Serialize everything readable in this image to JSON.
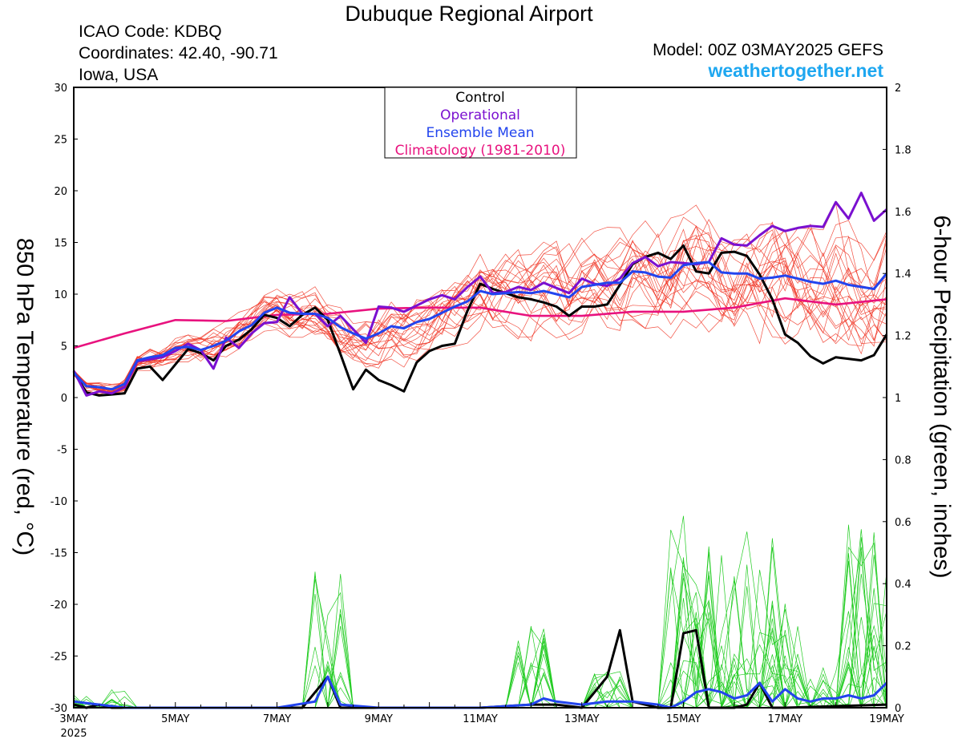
{
  "header": {
    "title": "Dubuque Regional Airport",
    "icao": "ICAO Code: KDBQ",
    "coords": "Coordinates: 42.40, -90.71",
    "location": "Iowa, USA",
    "model": "Model: 00Z 03MAY2025 GEFS",
    "brand": "weathertogether.net"
  },
  "chart_data": {
    "type": "line",
    "xlabel": "",
    "ylabel_left": "850 hPa Temperature (red, °C)",
    "ylabel_right": "6-hour Precipitation (green, inches)",
    "x_range_days": [
      3,
      19
    ],
    "x_ticks": [
      {
        "day": 3,
        "label": "3MAY",
        "sub": "2025"
      },
      {
        "day": 5,
        "label": "5MAY"
      },
      {
        "day": 7,
        "label": "7MAY"
      },
      {
        "day": 9,
        "label": "9MAY"
      },
      {
        "day": 11,
        "label": "11MAY"
      },
      {
        "day": 13,
        "label": "13MAY"
      },
      {
        "day": 15,
        "label": "15MAY"
      },
      {
        "day": 17,
        "label": "17MAY"
      },
      {
        "day": 19,
        "label": "19MAY"
      }
    ],
    "ylim_left": [
      -30,
      30
    ],
    "yticks_left": [
      "30",
      "25",
      "20",
      "15",
      "10",
      "5",
      "0",
      "-5",
      "-10",
      "-15",
      "-20",
      "-25",
      "-30"
    ],
    "ylim_right": [
      0,
      2
    ],
    "yticks_right": [
      "2",
      "1.8",
      "1.6",
      "1.4",
      "1.2",
      "1",
      "0.8",
      "0.6",
      "0.4",
      "0.2",
      "0"
    ],
    "legend": {
      "placement": "top-center",
      "entries": [
        {
          "label": "Control",
          "color": "#000000"
        },
        {
          "label": "Operational",
          "color": "#7a10d0"
        },
        {
          "label": "Ensemble Mean",
          "color": "#2244ee"
        },
        {
          "label": "Climatology (1981-2010)",
          "color": "#e8127e"
        }
      ]
    },
    "colors": {
      "member_temp": "#f03020",
      "member_precip": "#22cc22",
      "control": "#000000",
      "operational": "#7a10d0",
      "mean": "#2244ee",
      "climatology": "#e8127e"
    },
    "series": [
      {
        "name": "Climatology (1981-2010)",
        "axis": "left",
        "points": [
          [
            3,
            4.8
          ],
          [
            4,
            6.2
          ],
          [
            5,
            7.5
          ],
          [
            6,
            7.4
          ],
          [
            7,
            8.0
          ],
          [
            8,
            8.1
          ],
          [
            9,
            8.6
          ],
          [
            10,
            8.7
          ],
          [
            11,
            8.7
          ],
          [
            12,
            7.9
          ],
          [
            13,
            7.9
          ],
          [
            14,
            8.3
          ],
          [
            15,
            8.3
          ],
          [
            16,
            8.7
          ],
          [
            17,
            9.6
          ],
          [
            18,
            9.0
          ],
          [
            19,
            9.5
          ]
        ]
      },
      {
        "name": "Control",
        "axis": "left",
        "points": [
          [
            3,
            2.5
          ],
          [
            3.25,
            0.5
          ],
          [
            3.5,
            0.2
          ],
          [
            3.75,
            0.3
          ],
          [
            4,
            0.4
          ],
          [
            4.25,
            2.8
          ],
          [
            4.5,
            3.0
          ],
          [
            4.75,
            1.7
          ],
          [
            5,
            3.2
          ],
          [
            5.25,
            4.7
          ],
          [
            5.5,
            4.3
          ],
          [
            5.75,
            3.6
          ],
          [
            6,
            5.0
          ],
          [
            6.25,
            5.6
          ],
          [
            6.5,
            6.6
          ],
          [
            6.75,
            8.0
          ],
          [
            7,
            7.7
          ],
          [
            7.25,
            6.9
          ],
          [
            7.5,
            8.0
          ],
          [
            7.75,
            8.7
          ],
          [
            8,
            7.5
          ],
          [
            8.25,
            4.2
          ],
          [
            8.5,
            0.8
          ],
          [
            8.75,
            2.7
          ],
          [
            9,
            1.7
          ],
          [
            9.25,
            1.2
          ],
          [
            9.5,
            0.6
          ],
          [
            9.75,
            3.4
          ],
          [
            10,
            4.5
          ],
          [
            10.25,
            5.0
          ],
          [
            10.5,
            5.2
          ],
          [
            10.75,
            8.4
          ],
          [
            11,
            11.0
          ],
          [
            11.25,
            10.5
          ],
          [
            11.5,
            10.1
          ],
          [
            11.75,
            9.7
          ],
          [
            12,
            9.5
          ],
          [
            12.25,
            9.2
          ],
          [
            12.5,
            8.8
          ],
          [
            12.75,
            7.9
          ],
          [
            13,
            8.8
          ],
          [
            13.25,
            8.8
          ],
          [
            13.5,
            9.0
          ],
          [
            13.75,
            10.9
          ],
          [
            14,
            12.9
          ],
          [
            14.25,
            13.6
          ],
          [
            14.5,
            14.0
          ],
          [
            14.75,
            13.4
          ],
          [
            15,
            14.7
          ],
          [
            15.25,
            12.2
          ],
          [
            15.5,
            12.0
          ],
          [
            15.75,
            14.0
          ],
          [
            16,
            14.1
          ],
          [
            16.25,
            13.7
          ],
          [
            16.5,
            11.9
          ],
          [
            16.75,
            9.5
          ],
          [
            17,
            6.1
          ],
          [
            17.25,
            5.3
          ],
          [
            17.5,
            4.0
          ],
          [
            17.75,
            3.3
          ],
          [
            18,
            3.9
          ],
          [
            18.5,
            3.6
          ],
          [
            18.75,
            4.1
          ],
          [
            19,
            6.1
          ]
        ]
      },
      {
        "name": "Operational",
        "axis": "left",
        "points": [
          [
            3,
            2.6
          ],
          [
            3.25,
            0.2
          ],
          [
            3.5,
            0.6
          ],
          [
            3.75,
            0.4
          ],
          [
            4,
            1.0
          ],
          [
            4.25,
            3.5
          ],
          [
            4.5,
            3.7
          ],
          [
            4.75,
            3.9
          ],
          [
            5,
            4.5
          ],
          [
            5.25,
            5.2
          ],
          [
            5.5,
            4.6
          ],
          [
            5.75,
            2.8
          ],
          [
            6,
            5.8
          ],
          [
            6.25,
            4.8
          ],
          [
            6.5,
            6.2
          ],
          [
            6.75,
            7.2
          ],
          [
            7,
            7.3
          ],
          [
            7.25,
            9.7
          ],
          [
            7.5,
            8.1
          ],
          [
            7.75,
            8.1
          ],
          [
            8,
            6.9
          ],
          [
            8.25,
            7.9
          ],
          [
            8.5,
            6.6
          ],
          [
            8.75,
            5.3
          ],
          [
            9,
            8.8
          ],
          [
            9.25,
            8.7
          ],
          [
            9.5,
            8.3
          ],
          [
            9.75,
            8.9
          ],
          [
            10,
            9.5
          ],
          [
            10.25,
            9.9
          ],
          [
            10.5,
            9.5
          ],
          [
            10.75,
            10.7
          ],
          [
            11,
            11.7
          ],
          [
            11.25,
            10.1
          ],
          [
            11.5,
            10.2
          ],
          [
            11.75,
            10.7
          ],
          [
            12,
            10.4
          ],
          [
            12.25,
            11.1
          ],
          [
            12.5,
            10.6
          ],
          [
            12.75,
            10.1
          ],
          [
            13,
            11.5
          ],
          [
            13.25,
            11.0
          ],
          [
            13.5,
            10.8
          ],
          [
            13.75,
            11.5
          ],
          [
            14,
            13.0
          ],
          [
            14.25,
            13.6
          ],
          [
            14.5,
            12.7
          ],
          [
            14.75,
            13.1
          ],
          [
            15,
            13.0
          ],
          [
            15.25,
            12.9
          ],
          [
            15.5,
            13.1
          ],
          [
            15.75,
            15.4
          ],
          [
            16,
            14.8
          ],
          [
            16.25,
            14.7
          ],
          [
            16.5,
            15.7
          ],
          [
            16.75,
            16.6
          ],
          [
            17,
            16.1
          ],
          [
            17.25,
            16.4
          ],
          [
            17.5,
            16.6
          ],
          [
            17.75,
            16.5
          ],
          [
            18,
            18.9
          ],
          [
            18.25,
            17.3
          ],
          [
            18.5,
            19.8
          ],
          [
            18.75,
            17.1
          ],
          [
            19,
            18.2
          ]
        ]
      },
      {
        "name": "Ensemble Mean",
        "axis": "left",
        "points": [
          [
            3,
            2.4
          ],
          [
            3.25,
            1.1
          ],
          [
            3.5,
            1.0
          ],
          [
            3.75,
            0.8
          ],
          [
            4,
            1.3
          ],
          [
            4.25,
            3.6
          ],
          [
            4.5,
            3.9
          ],
          [
            4.75,
            4.1
          ],
          [
            5,
            4.8
          ],
          [
            5.25,
            4.9
          ],
          [
            5.5,
            4.6
          ],
          [
            5.75,
            5.0
          ],
          [
            6,
            5.5
          ],
          [
            6.25,
            6.4
          ],
          [
            6.5,
            7.0
          ],
          [
            6.75,
            8.2
          ],
          [
            7,
            8.7
          ],
          [
            7.25,
            8.2
          ],
          [
            7.5,
            8.1
          ],
          [
            7.75,
            8.1
          ],
          [
            8,
            7.7
          ],
          [
            8.25,
            6.8
          ],
          [
            8.5,
            6.2
          ],
          [
            8.75,
            5.7
          ],
          [
            9,
            6.2
          ],
          [
            9.25,
            6.9
          ],
          [
            9.5,
            6.7
          ],
          [
            9.75,
            7.3
          ],
          [
            10,
            7.6
          ],
          [
            10.25,
            8.2
          ],
          [
            10.5,
            8.8
          ],
          [
            10.75,
            9.3
          ],
          [
            11,
            10.3
          ],
          [
            11.25,
            10.0
          ],
          [
            11.5,
            10.1
          ],
          [
            11.75,
            10.2
          ],
          [
            12,
            10.1
          ],
          [
            12.25,
            10.3
          ],
          [
            12.5,
            10.0
          ],
          [
            12.75,
            9.7
          ],
          [
            13,
            10.7
          ],
          [
            13.25,
            10.9
          ],
          [
            13.5,
            11.1
          ],
          [
            13.75,
            11.1
          ],
          [
            14,
            12.2
          ],
          [
            14.25,
            12.1
          ],
          [
            14.5,
            11.7
          ],
          [
            14.75,
            11.6
          ],
          [
            15,
            12.8
          ],
          [
            15.25,
            13.0
          ],
          [
            15.5,
            13.1
          ],
          [
            15.75,
            12.1
          ],
          [
            16,
            12.0
          ],
          [
            16.25,
            12.0
          ],
          [
            16.5,
            11.5
          ],
          [
            16.75,
            11.6
          ],
          [
            17,
            11.8
          ],
          [
            17.25,
            11.5
          ],
          [
            17.5,
            11.2
          ],
          [
            17.75,
            11.0
          ],
          [
            18,
            11.3
          ],
          [
            18.25,
            10.9
          ],
          [
            18.5,
            10.7
          ],
          [
            18.75,
            10.5
          ],
          [
            19,
            12.0
          ]
        ]
      },
      {
        "name": "Control",
        "axis": "right",
        "points": [
          [
            3,
            0.01
          ],
          [
            3.25,
            0.0
          ],
          [
            3.5,
            0.01
          ],
          [
            3.75,
            0.0
          ],
          [
            4,
            0.0
          ],
          [
            6,
            0.0
          ],
          [
            7,
            0.0
          ],
          [
            7.5,
            0.0
          ],
          [
            8,
            0.1
          ],
          [
            8.25,
            0.0
          ],
          [
            11,
            0.0
          ],
          [
            12,
            0.01
          ],
          [
            12.5,
            0.01
          ],
          [
            13,
            0.0
          ],
          [
            13.5,
            0.1
          ],
          [
            13.75,
            0.25
          ],
          [
            14,
            0.02
          ],
          [
            14.5,
            0.0
          ],
          [
            14.75,
            0.0
          ],
          [
            15,
            0.24
          ],
          [
            15.25,
            0.25
          ],
          [
            15.5,
            0.0
          ],
          [
            16,
            0.0
          ],
          [
            16.25,
            0.01
          ],
          [
            16.5,
            0.08
          ],
          [
            16.75,
            0.0
          ],
          [
            17,
            0.0
          ],
          [
            19,
            0.01
          ]
        ]
      },
      {
        "name": "Ensemble Mean",
        "axis": "right",
        "points": [
          [
            3,
            0.02
          ],
          [
            3.5,
            0.01
          ],
          [
            4,
            0.0
          ],
          [
            7,
            0.0
          ],
          [
            7.75,
            0.02
          ],
          [
            8,
            0.1
          ],
          [
            8.25,
            0.01
          ],
          [
            9,
            0.0
          ],
          [
            10,
            0.0
          ],
          [
            11,
            0.0
          ],
          [
            12,
            0.01
          ],
          [
            12.25,
            0.03
          ],
          [
            12.5,
            0.02
          ],
          [
            13,
            0.01
          ],
          [
            13.5,
            0.02
          ],
          [
            14,
            0.02
          ],
          [
            14.5,
            0.01
          ],
          [
            14.75,
            0.0
          ],
          [
            15,
            0.02
          ],
          [
            15.25,
            0.05
          ],
          [
            15.5,
            0.06
          ],
          [
            15.75,
            0.05
          ],
          [
            16,
            0.03
          ],
          [
            16.25,
            0.04
          ],
          [
            16.5,
            0.08
          ],
          [
            16.75,
            0.02
          ],
          [
            17,
            0.06
          ],
          [
            17.25,
            0.03
          ],
          [
            17.5,
            0.02
          ],
          [
            17.75,
            0.03
          ],
          [
            18,
            0.03
          ],
          [
            18.25,
            0.04
          ],
          [
            18.5,
            0.03
          ],
          [
            18.75,
            0.04
          ],
          [
            19,
            0.08
          ]
        ]
      }
    ]
  }
}
